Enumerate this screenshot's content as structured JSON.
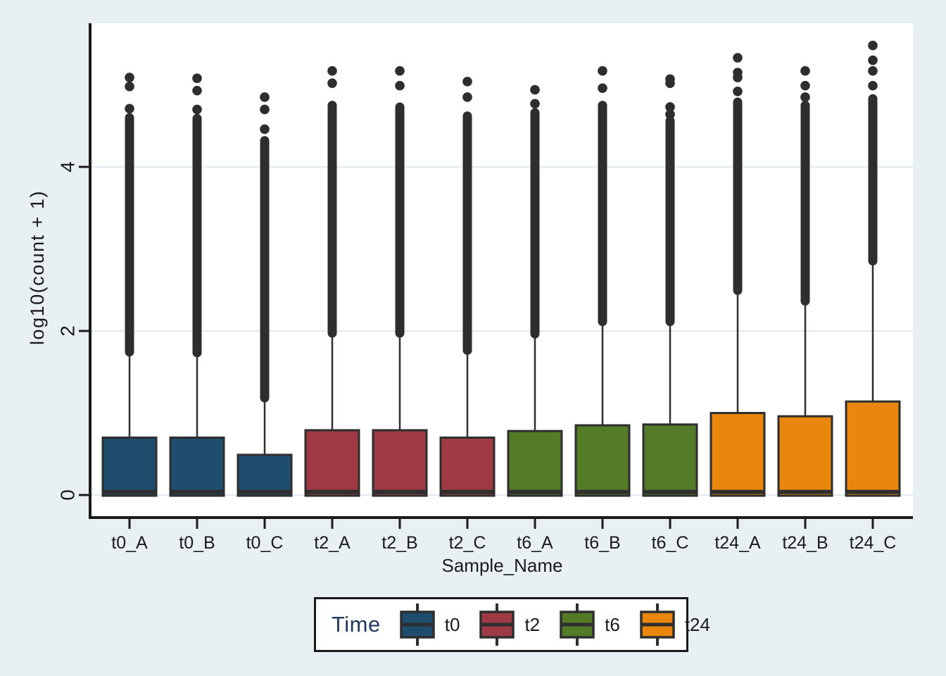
{
  "colors": {
    "background": "#e8f0f3",
    "plot_background": "#ffffff",
    "grid": "#dfeaf0",
    "axis": "#1a1a1a",
    "text": "#1a1a1a",
    "box_stroke": "#2e2e2e",
    "outlier": "#2e2e2e",
    "legend_title": "#21395f"
  },
  "legend": {
    "title": "Time",
    "entries": [
      {
        "label": "t0",
        "color": "#1f4d6e"
      },
      {
        "label": "t2",
        "color": "#9d3a44"
      },
      {
        "label": "t6",
        "color": "#537b28"
      },
      {
        "label": "t24",
        "color": "#e8860d"
      }
    ]
  },
  "chart_data": {
    "type": "boxplot",
    "title": "",
    "xlabel": "Sample_Name",
    "ylabel": "log10(count + 1)",
    "ylim": [
      -0.27,
      5.75
    ],
    "grid": true,
    "legend_position": "bottom",
    "yticks": [
      {
        "value": 0,
        "label": "0"
      },
      {
        "value": 2,
        "label": "2"
      },
      {
        "value": 4,
        "label": "4"
      }
    ],
    "categories": [
      "t0_A",
      "t0_B",
      "t0_C",
      "t2_A",
      "t2_B",
      "t2_C",
      "t6_A",
      "t6_B",
      "t6_C",
      "t24_A",
      "t24_B",
      "t24_C"
    ],
    "groups": [
      "t0",
      "t2",
      "t6",
      "t24"
    ],
    "group_colors": {
      "t0": "#1f4d6e",
      "t2": "#9d3a44",
      "t6": "#537b28",
      "t24": "#e8860d"
    },
    "samples": [
      {
        "name": "t0_A",
        "group": "t0",
        "q1": 0.0,
        "median": 0.02,
        "q3": 0.7,
        "whisker_low": 0.0,
        "whisker_high": 1.71,
        "outlier_run_top": 4.6,
        "outlier_dots": [
          4.71,
          4.98,
          5.09
        ]
      },
      {
        "name": "t0_B",
        "group": "t0",
        "q1": 0.0,
        "median": 0.02,
        "q3": 0.7,
        "whisker_low": 0.0,
        "whisker_high": 1.7,
        "outlier_run_top": 4.59,
        "outlier_dots": [
          4.7,
          4.93,
          5.08
        ]
      },
      {
        "name": "t0_C",
        "group": "t0",
        "q1": 0.0,
        "median": 0.02,
        "q3": 0.49,
        "whisker_low": 0.0,
        "whisker_high": 1.15,
        "outlier_run_top": 4.32,
        "outlier_dots": [
          4.46,
          4.7,
          4.85
        ]
      },
      {
        "name": "t2_A",
        "group": "t2",
        "q1": 0.0,
        "median": 0.02,
        "q3": 0.79,
        "whisker_low": 0.0,
        "whisker_high": 1.94,
        "outlier_run_top": 4.75,
        "outlier_dots": [
          5.02,
          5.17
        ]
      },
      {
        "name": "t2_B",
        "group": "t2",
        "q1": 0.0,
        "median": 0.02,
        "q3": 0.79,
        "whisker_low": 0.0,
        "whisker_high": 1.94,
        "outlier_run_top": 4.73,
        "outlier_dots": [
          4.99,
          5.17
        ]
      },
      {
        "name": "t2_C",
        "group": "t2",
        "q1": 0.0,
        "median": 0.02,
        "q3": 0.7,
        "whisker_low": 0.0,
        "whisker_high": 1.73,
        "outlier_run_top": 4.62,
        "outlier_dots": [
          4.85,
          5.04
        ]
      },
      {
        "name": "t6_A",
        "group": "t6",
        "q1": 0.0,
        "median": 0.02,
        "q3": 0.78,
        "whisker_low": 0.0,
        "whisker_high": 1.93,
        "outlier_run_top": 4.66,
        "outlier_dots": [
          4.77,
          4.94
        ]
      },
      {
        "name": "t6_B",
        "group": "t6",
        "q1": 0.0,
        "median": 0.02,
        "q3": 0.85,
        "whisker_low": 0.0,
        "whisker_high": 2.08,
        "outlier_run_top": 4.75,
        "outlier_dots": [
          4.96,
          5.17
        ]
      },
      {
        "name": "t6_C",
        "group": "t6",
        "q1": 0.0,
        "median": 0.02,
        "q3": 0.86,
        "whisker_low": 0.0,
        "whisker_high": 2.08,
        "outlier_run_top": 4.56,
        "outlier_dots": [
          4.64,
          4.73,
          5.02,
          5.07
        ]
      },
      {
        "name": "t24_A",
        "group": "t24",
        "q1": 0.0,
        "median": 0.02,
        "q3": 1.0,
        "whisker_low": 0.0,
        "whisker_high": 2.46,
        "outlier_run_top": 4.79,
        "outlier_dots": [
          4.92,
          5.09,
          5.15,
          5.33
        ]
      },
      {
        "name": "t24_B",
        "group": "t24",
        "q1": 0.0,
        "median": 0.02,
        "q3": 0.96,
        "whisker_low": 0.0,
        "whisker_high": 2.33,
        "outlier_run_top": 4.75,
        "outlier_dots": [
          4.85,
          4.99,
          5.17
        ]
      },
      {
        "name": "t24_C",
        "group": "t24",
        "q1": 0.0,
        "median": 0.02,
        "q3": 1.14,
        "whisker_low": 0.0,
        "whisker_high": 2.82,
        "outlier_run_top": 4.83,
        "outlier_dots": [
          4.99,
          5.17,
          5.3,
          5.48
        ]
      }
    ]
  }
}
